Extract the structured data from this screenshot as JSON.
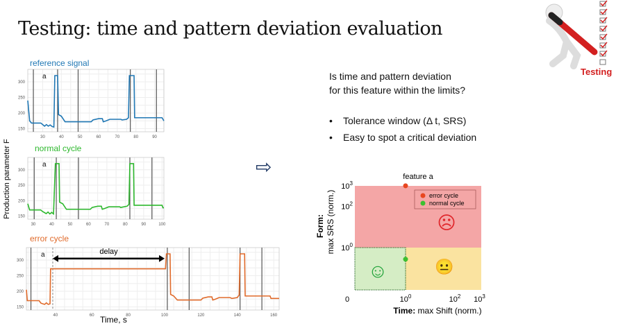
{
  "title": "Testing: time and pattern deviation evaluation",
  "testing_logo": "Testing",
  "question": [
    "Is time and pattern deviation",
    "for this feature within the limits?"
  ],
  "bullets": [
    "Tolerance window (Δ t, SRS)",
    "Easy to spot a critical deviation"
  ],
  "y_axis_label": "Production parameter F",
  "x_axis_label": "Time, s",
  "arrow_icon": "outline-right-arrow",
  "chart_data": [
    {
      "type": "line",
      "title": "reference signal",
      "color": "#1f77b4",
      "marker": "a",
      "xlim": [
        22,
        95
      ],
      "ylim": [
        140,
        340
      ],
      "xticks": [
        30,
        40,
        50,
        60,
        70,
        80,
        90
      ],
      "yticks": [
        150,
        200,
        250,
        300
      ],
      "vlines": [
        25,
        38,
        49,
        77,
        91
      ],
      "points": [
        [
          22,
          240
        ],
        [
          23,
          175
        ],
        [
          24,
          168
        ],
        [
          29,
          168
        ],
        [
          30,
          163
        ],
        [
          31,
          158
        ],
        [
          32,
          163
        ],
        [
          33,
          158
        ],
        [
          34,
          162
        ],
        [
          35,
          157
        ],
        [
          36,
          155
        ],
        [
          36.5,
          320
        ],
        [
          38,
          320
        ],
        [
          38.5,
          195
        ],
        [
          40,
          190
        ],
        [
          42,
          172
        ],
        [
          56,
          172
        ],
        [
          57,
          178
        ],
        [
          60,
          182
        ],
        [
          62,
          182
        ],
        [
          62.5,
          172
        ],
        [
          64,
          175
        ],
        [
          66,
          180
        ],
        [
          72,
          180
        ],
        [
          72.5,
          178
        ],
        [
          75,
          180
        ],
        [
          76,
          185
        ],
        [
          76.5,
          320
        ],
        [
          79,
          320
        ],
        [
          79.3,
          185
        ],
        [
          94,
          185
        ],
        [
          95,
          175
        ]
      ]
    },
    {
      "type": "line",
      "title": "normal cycle",
      "color": "#2db82d",
      "marker": "a",
      "xlim": [
        27,
        101
      ],
      "ylim": [
        140,
        340
      ],
      "xticks": [
        30,
        40,
        50,
        60,
        70,
        80,
        90,
        100
      ],
      "yticks": [
        150,
        200,
        250,
        300
      ],
      "vlines": [
        30.5,
        42.5,
        54.5,
        82.5,
        94.5
      ],
      "points": [
        [
          27,
          190
        ],
        [
          28,
          170
        ],
        [
          34,
          170
        ],
        [
          35,
          165
        ],
        [
          37,
          158
        ],
        [
          38,
          163
        ],
        [
          39,
          157
        ],
        [
          40,
          162
        ],
        [
          41,
          157
        ],
        [
          42,
          320
        ],
        [
          44,
          320
        ],
        [
          44.3,
          195
        ],
        [
          46,
          190
        ],
        [
          48,
          172
        ],
        [
          61,
          172
        ],
        [
          62,
          178
        ],
        [
          65,
          182
        ],
        [
          67,
          182
        ],
        [
          67.5,
          172
        ],
        [
          69,
          175
        ],
        [
          71,
          180
        ],
        [
          77,
          180
        ],
        [
          77.5,
          178
        ],
        [
          81,
          182
        ],
        [
          82,
          188
        ],
        [
          82.5,
          320
        ],
        [
          84.5,
          320
        ],
        [
          84.8,
          185
        ],
        [
          100,
          185
        ],
        [
          100.5,
          177
        ],
        [
          101,
          177
        ]
      ]
    },
    {
      "type": "line",
      "title": "error cycle",
      "color": "#e06a2a",
      "marker": "a",
      "annotation": "delay",
      "xlim": [
        24,
        163
      ],
      "ylim": [
        140,
        340
      ],
      "xticks": [
        40,
        60,
        80,
        100,
        120,
        140,
        160
      ],
      "yticks": [
        150,
        200,
        250,
        300
      ],
      "vlines": [
        26.5,
        101.5,
        113.5,
        141.5,
        153.5
      ],
      "dashed_vline": 38.5,
      "delay_range": [
        38.5,
        100
      ],
      "points": [
        [
          24,
          205
        ],
        [
          24.5,
          170
        ],
        [
          31,
          170
        ],
        [
          32,
          162
        ],
        [
          34,
          158
        ],
        [
          35,
          163
        ],
        [
          36,
          158
        ],
        [
          37,
          160
        ],
        [
          37.3,
          272
        ],
        [
          100.5,
          272
        ],
        [
          101,
          320
        ],
        [
          103,
          320
        ],
        [
          103.3,
          190
        ],
        [
          105,
          185
        ],
        [
          107,
          172
        ],
        [
          120,
          172
        ],
        [
          121,
          178
        ],
        [
          124,
          182
        ],
        [
          126,
          182
        ],
        [
          126.5,
          172
        ],
        [
          128,
          175
        ],
        [
          130,
          180
        ],
        [
          136,
          180
        ],
        [
          137,
          177
        ],
        [
          140,
          180
        ],
        [
          141,
          188
        ],
        [
          141.5,
          320
        ],
        [
          144,
          320
        ],
        [
          144.3,
          185
        ],
        [
          158,
          185
        ],
        [
          158.5,
          177
        ],
        [
          163,
          177
        ]
      ]
    },
    {
      "type": "scatter",
      "title": "feature a",
      "xlabel_bold": "Time:",
      "xlabel": "max Shift (norm.)",
      "ylabel_bold": "Form:",
      "ylabel": "max SRS (norm.)",
      "xticks": [
        {
          "v": 0,
          "l": "0"
        },
        {
          "v": 1,
          "l": "10",
          "e": "0"
        },
        {
          "v": 100,
          "l": "10",
          "e": "2"
        },
        {
          "v": 1000,
          "l": "10",
          "e": "3"
        }
      ],
      "yticks": [
        {
          "v": 1,
          "l": "10",
          "e": "0"
        },
        {
          "v": 100,
          "l": "10",
          "e": "2"
        },
        {
          "v": 1000,
          "l": "10",
          "e": "3"
        }
      ],
      "regions": [
        {
          "name": "error",
          "color": "#f4a6a6",
          "face": "☹",
          "face_color": "#e0262b"
        },
        {
          "name": "warning",
          "color": "#fae3a0",
          "face": "😐",
          "face_color": "#e8b820"
        },
        {
          "name": "ok",
          "color": "#d5edc5",
          "face": "☺",
          "face_color": "#21a33a"
        }
      ],
      "series": [
        {
          "name": "error cycle",
          "color": "#e8461f",
          "x": 1,
          "y": 1000
        },
        {
          "name": "normal cycle",
          "color": "#3cc030",
          "x": 1,
          "y": 0.5
        }
      ],
      "legend": "top-right"
    }
  ]
}
